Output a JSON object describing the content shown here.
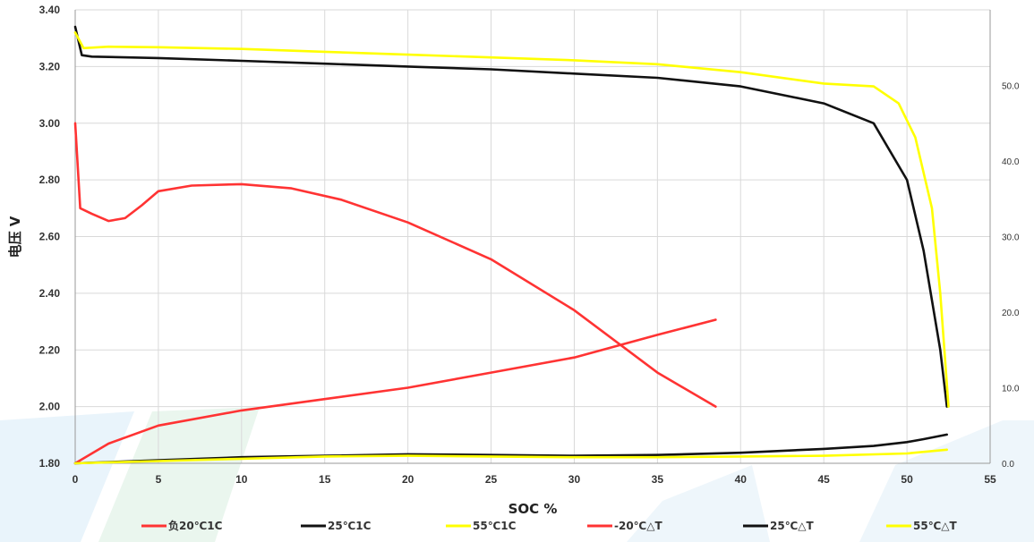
{
  "chart_data": {
    "type": "line",
    "title": "",
    "xlabel": "SOC %",
    "ylabel": "电压 V",
    "xlim": [
      0,
      55
    ],
    "ylim": [
      1.8,
      3.4
    ],
    "y2lim": [
      0,
      60
    ],
    "x_ticks": [
      0,
      5,
      10,
      15,
      20,
      25,
      30,
      35,
      40,
      45,
      50,
      55
    ],
    "y_ticks": [
      "1.80",
      "2.00",
      "2.20",
      "2.40",
      "2.60",
      "2.80",
      "3.00",
      "3.20",
      "3.40"
    ],
    "y2_ticks": [
      "0.0",
      "10.0",
      "20.0",
      "30.0",
      "40.0",
      "50.0"
    ],
    "grid": true,
    "legend_position": "bottom",
    "series": [
      {
        "name": "负20℃1C",
        "axis": "left",
        "color": "#ff3333",
        "x": [
          0,
          0.3,
          1,
          2,
          3,
          4,
          5,
          7,
          10,
          13,
          16,
          20,
          25,
          30,
          35,
          38.5
        ],
        "y": [
          3.0,
          2.7,
          2.68,
          2.655,
          2.665,
          2.71,
          2.76,
          2.78,
          2.785,
          2.77,
          2.73,
          2.65,
          2.52,
          2.34,
          2.12,
          2.0
        ]
      },
      {
        "name": "25℃1C",
        "axis": "left",
        "color": "#111111",
        "x": [
          0,
          0.4,
          1,
          5,
          10,
          15,
          20,
          25,
          30,
          35,
          40,
          45,
          48,
          50,
          51,
          52,
          52.4
        ],
        "y": [
          3.34,
          3.24,
          3.235,
          3.23,
          3.22,
          3.21,
          3.2,
          3.19,
          3.175,
          3.16,
          3.13,
          3.07,
          3.0,
          2.8,
          2.55,
          2.2,
          2.0
        ]
      },
      {
        "name": "55℃1C",
        "axis": "left",
        "color": "#ffff00",
        "x": [
          0,
          0.5,
          2,
          5,
          10,
          15,
          20,
          25,
          30,
          35,
          40,
          45,
          48,
          49.5,
          50.5,
          51.5,
          52,
          52.5
        ],
        "y": [
          3.32,
          3.265,
          3.27,
          3.268,
          3.262,
          3.252,
          3.242,
          3.232,
          3.222,
          3.208,
          3.18,
          3.14,
          3.13,
          3.07,
          2.95,
          2.7,
          2.4,
          2.0
        ]
      },
      {
        "name": "-20℃△T",
        "axis": "right",
        "color": "#ff3333",
        "x": [
          0,
          2,
          5,
          10,
          15,
          20,
          25,
          30,
          35,
          38.5
        ],
        "y": [
          0,
          2.6,
          5.0,
          7.0,
          8.5,
          10.0,
          12.0,
          14.0,
          17.0,
          19.0
        ]
      },
      {
        "name": "25℃△T",
        "axis": "right",
        "color": "#111111",
        "x": [
          0,
          5,
          10,
          15,
          20,
          25,
          30,
          35,
          40,
          45,
          48,
          50,
          51,
          52.4
        ],
        "y": [
          0,
          0.4,
          0.8,
          1.0,
          1.2,
          1.1,
          1.0,
          1.1,
          1.4,
          1.9,
          2.3,
          2.8,
          3.2,
          3.8
        ]
      },
      {
        "name": "55℃△T",
        "axis": "right",
        "color": "#ffff00",
        "x": [
          0,
          5,
          10,
          15,
          20,
          25,
          30,
          35,
          40,
          45,
          50,
          52.4
        ],
        "y": [
          0,
          0.3,
          0.6,
          0.9,
          1.0,
          0.9,
          0.8,
          0.8,
          0.9,
          1.0,
          1.3,
          1.8
        ]
      }
    ]
  }
}
